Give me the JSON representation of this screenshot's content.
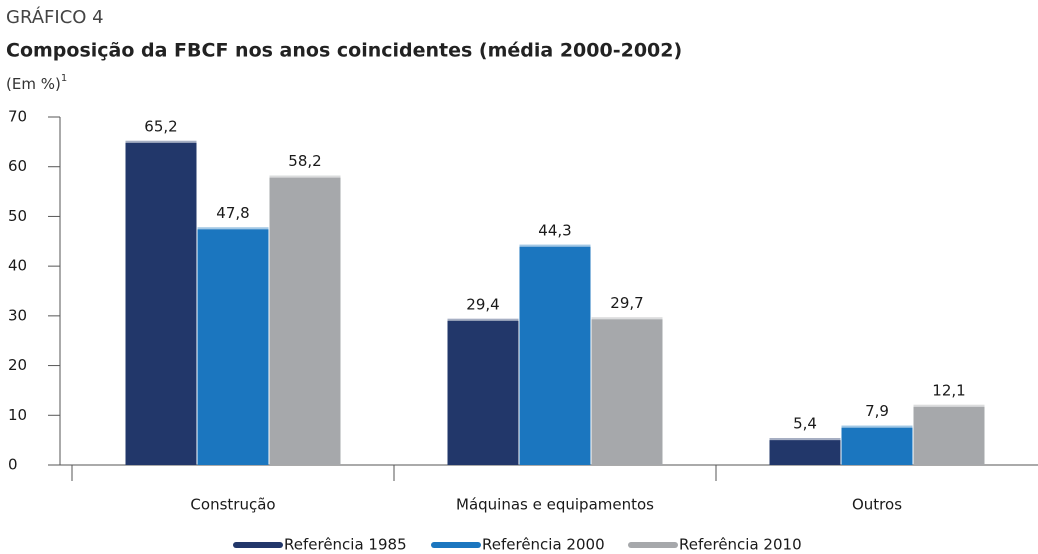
{
  "chart_data": {
    "type": "bar",
    "header": "GRÁFICO 4",
    "title": "Composição da FBCF nos anos coincidentes (média 2000-2002)",
    "subtitle": "(Em %)",
    "footnote_mark": "1",
    "categories": [
      "Construção",
      "Máquinas e equipamentos",
      "Outros"
    ],
    "series": [
      {
        "name": "Referência 1985",
        "color": "#22376a",
        "values": [
          65.2,
          29.4,
          5.4
        ],
        "value_labels": [
          "65,2",
          "29,4",
          "5,4"
        ]
      },
      {
        "name": "Referência 2000",
        "color": "#1b76bf",
        "values": [
          47.8,
          44.3,
          7.9
        ],
        "value_labels": [
          "47,8",
          "44,3",
          "7,9"
        ]
      },
      {
        "name": "Referência 2010",
        "color": "#a6a8ab",
        "values": [
          58.2,
          29.7,
          12.1
        ],
        "value_labels": [
          "58,2",
          "29,7",
          "12,1"
        ]
      }
    ],
    "ylim": [
      0,
      70
    ],
    "yticks": [
      0,
      10,
      20,
      30,
      40,
      50,
      60,
      70
    ],
    "grid": false,
    "legend": "bottom"
  }
}
